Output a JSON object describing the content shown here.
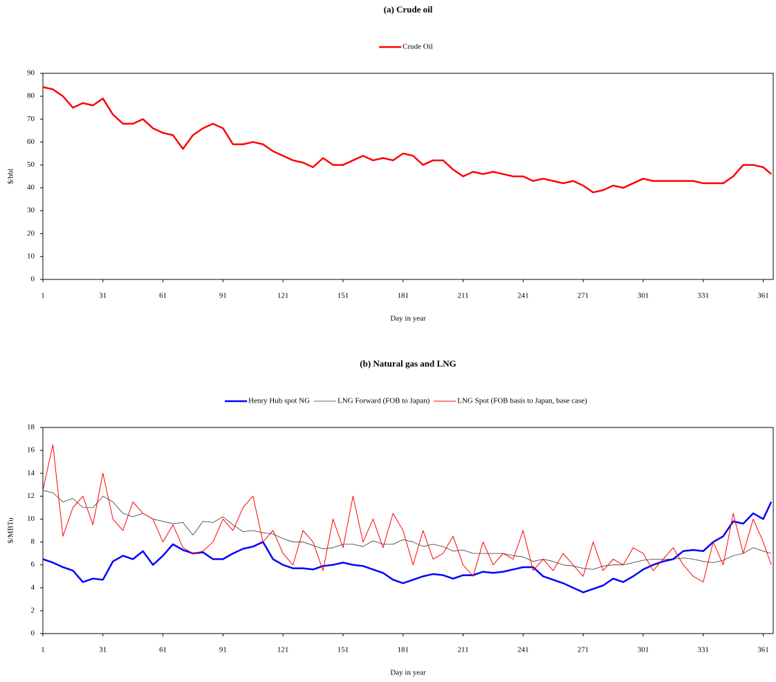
{
  "chart_data": [
    {
      "type": "line",
      "title": "(a) Crude oil",
      "xlabel": "Day in year",
      "ylabel": "$/bbl",
      "x": [
        1,
        6,
        11,
        16,
        21,
        26,
        31,
        36,
        41,
        46,
        51,
        56,
        61,
        66,
        71,
        76,
        81,
        86,
        91,
        96,
        101,
        106,
        111,
        116,
        121,
        126,
        131,
        136,
        141,
        146,
        151,
        156,
        161,
        166,
        171,
        176,
        181,
        186,
        191,
        196,
        201,
        206,
        211,
        216,
        221,
        226,
        231,
        236,
        241,
        246,
        251,
        256,
        261,
        266,
        271,
        276,
        281,
        286,
        291,
        296,
        301,
        306,
        311,
        316,
        321,
        326,
        331,
        336,
        341,
        346,
        351,
        356,
        361,
        365
      ],
      "series": [
        {
          "name": "Crude Oil",
          "color": "#ff0000",
          "values": [
            84,
            83,
            80,
            75,
            77,
            76,
            79,
            72,
            68,
            68,
            70,
            66,
            64,
            63,
            57,
            63,
            66,
            68,
            66,
            59,
            59,
            60,
            59,
            56,
            54,
            52,
            51,
            49,
            53,
            50,
            50,
            52,
            54,
            52,
            53,
            52,
            55,
            54,
            50,
            52,
            52,
            48,
            45,
            47,
            46,
            47,
            46,
            45,
            45,
            43,
            44,
            43,
            42,
            43,
            41,
            38,
            39,
            41,
            40,
            42,
            44,
            43,
            43,
            43,
            43,
            43,
            42,
            42,
            42,
            45,
            50,
            50,
            49,
            46
          ]
        }
      ],
      "xlim": [
        1,
        366
      ],
      "ylim": [
        0,
        90
      ],
      "xticks": [
        1,
        31,
        61,
        91,
        121,
        151,
        181,
        211,
        241,
        271,
        301,
        331,
        361
      ],
      "yticks": [
        0,
        10,
        20,
        30,
        40,
        50,
        60,
        70,
        80,
        90
      ]
    },
    {
      "type": "line",
      "title": "(b) Natural gas and LNG",
      "xlabel": "Day in year",
      "ylabel": "$/MBTu",
      "x": [
        1,
        6,
        11,
        16,
        21,
        26,
        31,
        36,
        41,
        46,
        51,
        56,
        61,
        66,
        71,
        76,
        81,
        86,
        91,
        96,
        101,
        106,
        111,
        116,
        121,
        126,
        131,
        136,
        141,
        146,
        151,
        156,
        161,
        166,
        171,
        176,
        181,
        186,
        191,
        196,
        201,
        206,
        211,
        216,
        221,
        226,
        231,
        236,
        241,
        246,
        251,
        256,
        261,
        266,
        271,
        276,
        281,
        286,
        291,
        296,
        301,
        306,
        311,
        316,
        321,
        326,
        331,
        336,
        341,
        346,
        351,
        356,
        361,
        365
      ],
      "series": [
        {
          "name": "Henry Hub spot NG",
          "color": "#0000ff",
          "values": [
            6.5,
            6.2,
            5.8,
            5.5,
            4.5,
            4.8,
            4.7,
            6.3,
            6.8,
            6.5,
            7.2,
            6.0,
            6.8,
            7.8,
            7.3,
            7.0,
            7.1,
            6.5,
            6.5,
            7.0,
            7.4,
            7.6,
            8.0,
            6.5,
            6.0,
            5.7,
            5.7,
            5.6,
            5.9,
            6.0,
            6.2,
            6.0,
            5.9,
            5.6,
            5.3,
            4.7,
            4.4,
            4.7,
            5.0,
            5.2,
            5.1,
            4.8,
            5.1,
            5.1,
            5.4,
            5.3,
            5.4,
            5.6,
            5.8,
            5.8,
            5.0,
            4.7,
            4.4,
            4.0,
            3.6,
            3.9,
            4.2,
            4.8,
            4.5,
            5.0,
            5.6,
            6.0,
            6.3,
            6.5,
            7.2,
            7.3,
            7.2,
            8.0,
            8.5,
            9.8,
            9.6,
            10.5,
            10.0,
            11.5
          ]
        },
        {
          "name": "LNG Forward (FOB to Japan)",
          "color": "#333333",
          "values": [
            12.5,
            12.3,
            11.5,
            11.8,
            11.0,
            11.0,
            12.0,
            11.5,
            10.5,
            10.2,
            10.5,
            10.0,
            9.8,
            9.6,
            9.7,
            8.6,
            9.8,
            9.7,
            10.2,
            9.5,
            8.9,
            9.0,
            8.8,
            8.7,
            8.3,
            8.0,
            8.0,
            7.7,
            7.4,
            7.5,
            7.8,
            7.8,
            7.6,
            8.1,
            7.8,
            7.8,
            8.2,
            8.0,
            7.6,
            7.8,
            7.6,
            7.2,
            7.3,
            7.0,
            7.0,
            7.0,
            7.0,
            6.8,
            6.7,
            6.3,
            6.5,
            6.3,
            6.0,
            5.9,
            5.7,
            5.6,
            5.9,
            6.0,
            6.0,
            6.2,
            6.4,
            6.5,
            6.5,
            6.5,
            6.6,
            6.5,
            6.3,
            6.2,
            6.4,
            6.8,
            7.0,
            7.5,
            7.2,
            7.0
          ]
        },
        {
          "name": "LNG Spot (FOB basis to Japan, base case)",
          "color": "#ff0000",
          "values": [
            12.5,
            16.5,
            8.5,
            11.0,
            12.0,
            9.5,
            14.0,
            10.0,
            9.0,
            11.5,
            10.5,
            10.0,
            8.0,
            9.5,
            7.5,
            7.0,
            7.2,
            8.0,
            10.0,
            9.0,
            11.0,
            12.0,
            8.0,
            9.0,
            7.0,
            6.0,
            9.0,
            8.0,
            5.5,
            10.0,
            7.5,
            12.0,
            8.0,
            10.0,
            7.5,
            10.5,
            9.0,
            6.0,
            9.0,
            6.5,
            7.0,
            8.5,
            6.0,
            5.0,
            8.0,
            6.0,
            7.0,
            6.5,
            9.0,
            5.5,
            6.5,
            5.5,
            7.0,
            6.0,
            5.0,
            8.0,
            5.5,
            6.5,
            6.0,
            7.5,
            7.0,
            5.5,
            6.5,
            7.5,
            6.0,
            5.0,
            4.5,
            8.0,
            6.0,
            10.5,
            7.0,
            10.0,
            8.0,
            6.0
          ]
        }
      ],
      "xlim": [
        1,
        366
      ],
      "ylim": [
        0,
        18
      ],
      "xticks": [
        1,
        31,
        61,
        91,
        121,
        151,
        181,
        211,
        241,
        271,
        301,
        331,
        361
      ],
      "yticks": [
        0,
        2,
        4,
        6,
        8,
        10,
        12,
        14,
        16,
        18
      ]
    }
  ]
}
